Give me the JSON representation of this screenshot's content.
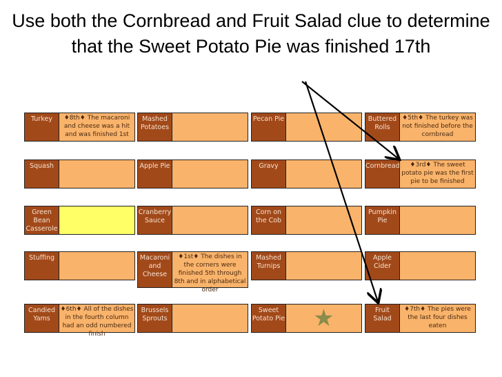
{
  "title": "Use both the Cornbread and Fruit Salad clue to determine that the Sweet Potato Pie was finished 17th",
  "colors": {
    "label_bg": "#a2491a",
    "clue_bg": "#f9b36b",
    "highlight": "#ffff66",
    "star": "#8b8b4b"
  },
  "rows": [
    [
      {
        "label": "Turkey",
        "clue": "♦8th♦ The macaroni and cheese was a hit and was finished 1st"
      },
      {
        "label": "Mashed Potatoes",
        "clue": ""
      },
      {
        "label": "Pecan Pie",
        "clue": ""
      },
      {
        "label": "Buttered Rolls",
        "clue": "♦5th♦ The turkey was not finished before the cornbread"
      }
    ],
    [
      {
        "label": "Squash",
        "clue": ""
      },
      {
        "label": "Apple Pie",
        "clue": ""
      },
      {
        "label": "Gravy",
        "clue": ""
      },
      {
        "label": "Cornbread",
        "clue": "♦3rd♦ The sweet potato pie was the first pie to be finished"
      }
    ],
    [
      {
        "label": "Green Bean Casserole",
        "clue": "",
        "highlight": true
      },
      {
        "label": "Cranberry Sauce",
        "clue": ""
      },
      {
        "label": "Corn on the Cob",
        "clue": ""
      },
      {
        "label": "Pumpkin Pie",
        "clue": ""
      }
    ],
    [
      {
        "label": "Stuffing",
        "clue": ""
      },
      {
        "label": "Macaroni and Cheese",
        "clue": "♦1st♦ The dishes in the corners were finished 5th through 8th and in alphabetical order"
      },
      {
        "label": "Mashed Turnips",
        "clue": ""
      },
      {
        "label": "Apple Cider",
        "clue": ""
      }
    ],
    [
      {
        "label": "Candied Yams",
        "clue": "♦6th♦ All of the dishes in the fourth column had an odd numbered finish"
      },
      {
        "label": "Brussels Sprouts",
        "clue": ""
      },
      {
        "label": "Sweet Potato Pie",
        "clue": "",
        "icon": "star-icon"
      },
      {
        "label": "Fruit Salad",
        "clue": "♦7th♦ The pies were the last four dishes eaten"
      }
    ]
  ]
}
